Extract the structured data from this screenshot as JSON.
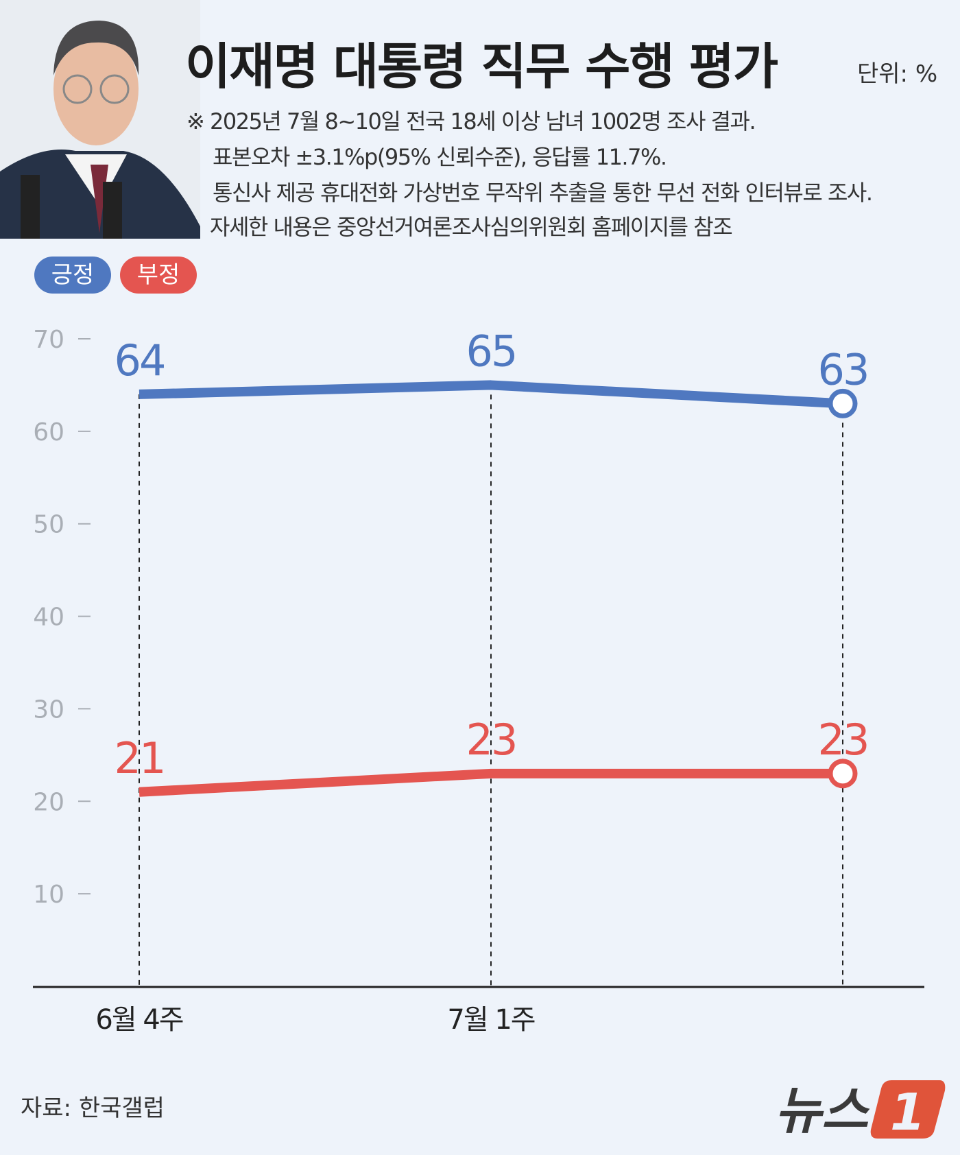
{
  "title": "이재명 대통령 직무 수행 평가",
  "unit": "단위: %",
  "notes": [
    "※ 2025년 7월 8~10일 전국 18세 이상 남녀 1002명 조사 결과.",
    "표본오차 ±3.1%p(95% 신뢰수준), 응답률 11.7%.",
    "통신사 제공 휴대전화 가상번호 무작위 추출을 통한 무선 전화 인터뷰로 조사.",
    "자세한 내용은 중앙선거여론조사심의위원회 홈페이지를 참조"
  ],
  "source": "자료: 한국갤럽",
  "logo": "뉴스1",
  "chart_data": {
    "type": "line",
    "categories": [
      "6월 4주",
      "7월 1주",
      ""
    ],
    "ylim": [
      0,
      70
    ],
    "yticks": [
      "10",
      "20",
      "30",
      "40",
      "50",
      "60",
      "70"
    ],
    "grid": false,
    "legend": "top-left",
    "series": [
      {
        "name": "긍정",
        "color": "#4f78c0",
        "values": [
          64,
          65,
          63
        ]
      },
      {
        "name": "부정",
        "color": "#e45550",
        "values": [
          21,
          23,
          23
        ]
      }
    ]
  }
}
